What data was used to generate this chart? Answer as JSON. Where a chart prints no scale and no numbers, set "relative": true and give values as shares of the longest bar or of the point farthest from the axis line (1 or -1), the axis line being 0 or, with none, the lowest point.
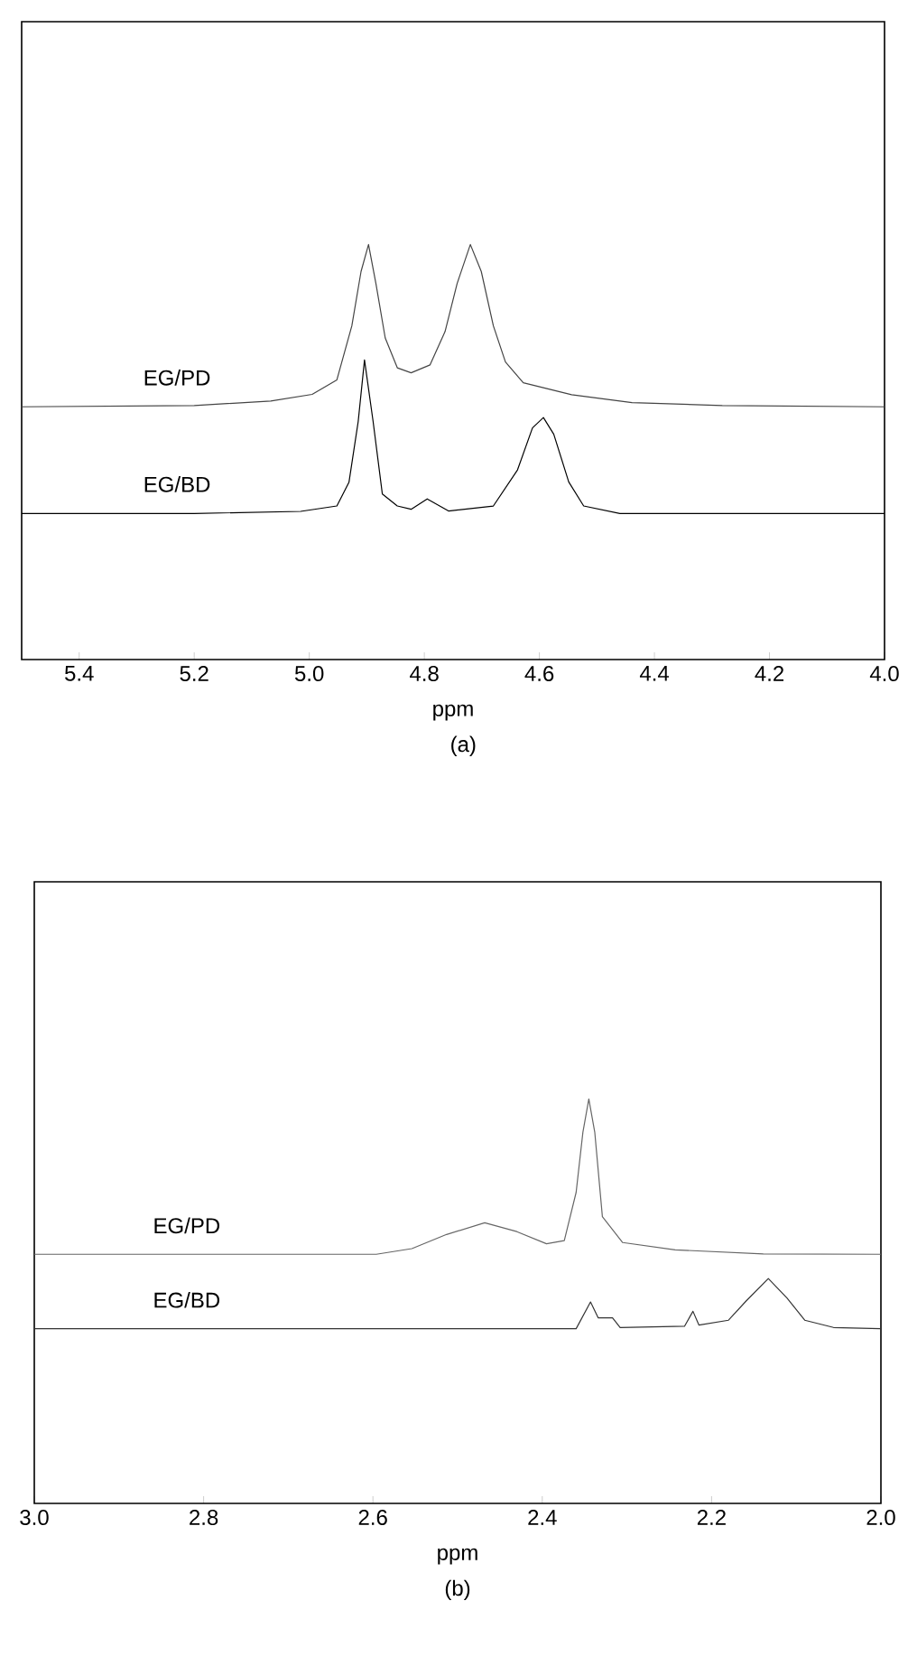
{
  "chart_data": [
    {
      "type": "line",
      "relative": true,
      "xlabel": "ppm",
      "annotations": [
        "(a)"
      ],
      "xlim": [
        5.5,
        4.0
      ],
      "xticks": [
        5.4,
        5.2,
        {
          "value": 5.0,
          "label": "5.0"
        },
        4.8,
        4.6,
        4.4,
        4.2,
        {
          "value": 4.0,
          "label": "4.0"
        }
      ],
      "series": [
        {
          "name": "EG/PD",
          "color": "#444444",
          "x": [
            5.5,
            5.2,
            5.067,
            4.995,
            4.952,
            4.926,
            4.91,
            4.897,
            4.884,
            4.868,
            4.847,
            4.823,
            4.79,
            4.764,
            4.743,
            4.72,
            4.701,
            4.68,
            4.659,
            4.628,
            4.544,
            4.439,
            4.282,
            4.0
          ],
          "values": [
            0.609,
            0.612,
            0.623,
            0.639,
            0.674,
            0.804,
            0.935,
            1.0,
            0.905,
            0.775,
            0.703,
            0.691,
            0.71,
            0.79,
            0.906,
            1.0,
            0.935,
            0.804,
            0.717,
            0.667,
            0.638,
            0.619,
            0.612,
            0.609
          ]
        },
        {
          "name": "EG/BD",
          "color": "#000000",
          "x": [
            5.5,
            5.2,
            5.015,
            4.952,
            4.931,
            4.915,
            4.904,
            4.889,
            4.873,
            4.847,
            4.823,
            4.795,
            4.758,
            4.68,
            4.638,
            4.612,
            4.593,
            4.575,
            4.549,
            4.523,
            4.46,
            4.0
          ],
          "values": [
            0.352,
            0.352,
            0.357,
            0.37,
            0.427,
            0.573,
            0.722,
            0.573,
            0.399,
            0.37,
            0.362,
            0.387,
            0.358,
            0.37,
            0.457,
            0.558,
            0.583,
            0.543,
            0.428,
            0.37,
            0.352,
            0.352
          ]
        }
      ]
    },
    {
      "type": "line",
      "relative": true,
      "xlabel": "ppm",
      "annotations": [
        "(b)"
      ],
      "xlim": [
        3.0,
        2.0
      ],
      "xticks": [
        {
          "value": 3.0,
          "label": "3.0"
        },
        2.8,
        2.6,
        2.4,
        2.2,
        {
          "value": 2.0,
          "label": "2.0"
        }
      ],
      "series": [
        {
          "name": "EG/PD",
          "color": "#666666",
          "x": [
            3.0,
            2.596,
            2.554,
            2.513,
            2.468,
            2.43,
            2.395,
            2.374,
            2.36,
            2.352,
            2.345,
            2.338,
            2.329,
            2.305,
            2.243,
            2.139,
            2.0
          ],
          "values": [
            0.616,
            0.616,
            0.63,
            0.665,
            0.694,
            0.672,
            0.642,
            0.65,
            0.769,
            0.918,
            1.0,
            0.918,
            0.709,
            0.645,
            0.627,
            0.617,
            0.616
          ]
        },
        {
          "name": "EG/BD",
          "color": "#333333",
          "x": [
            3.0,
            2.36,
            2.343,
            2.334,
            2.317,
            2.308,
            2.232,
            2.222,
            2.215,
            2.18,
            2.159,
            2.133,
            2.111,
            2.09,
            2.056,
            2.0
          ],
          "values": [
            0.432,
            0.432,
            0.498,
            0.459,
            0.459,
            0.435,
            0.438,
            0.475,
            0.441,
            0.453,
            0.501,
            0.556,
            0.508,
            0.453,
            0.435,
            0.432
          ]
        }
      ]
    }
  ]
}
